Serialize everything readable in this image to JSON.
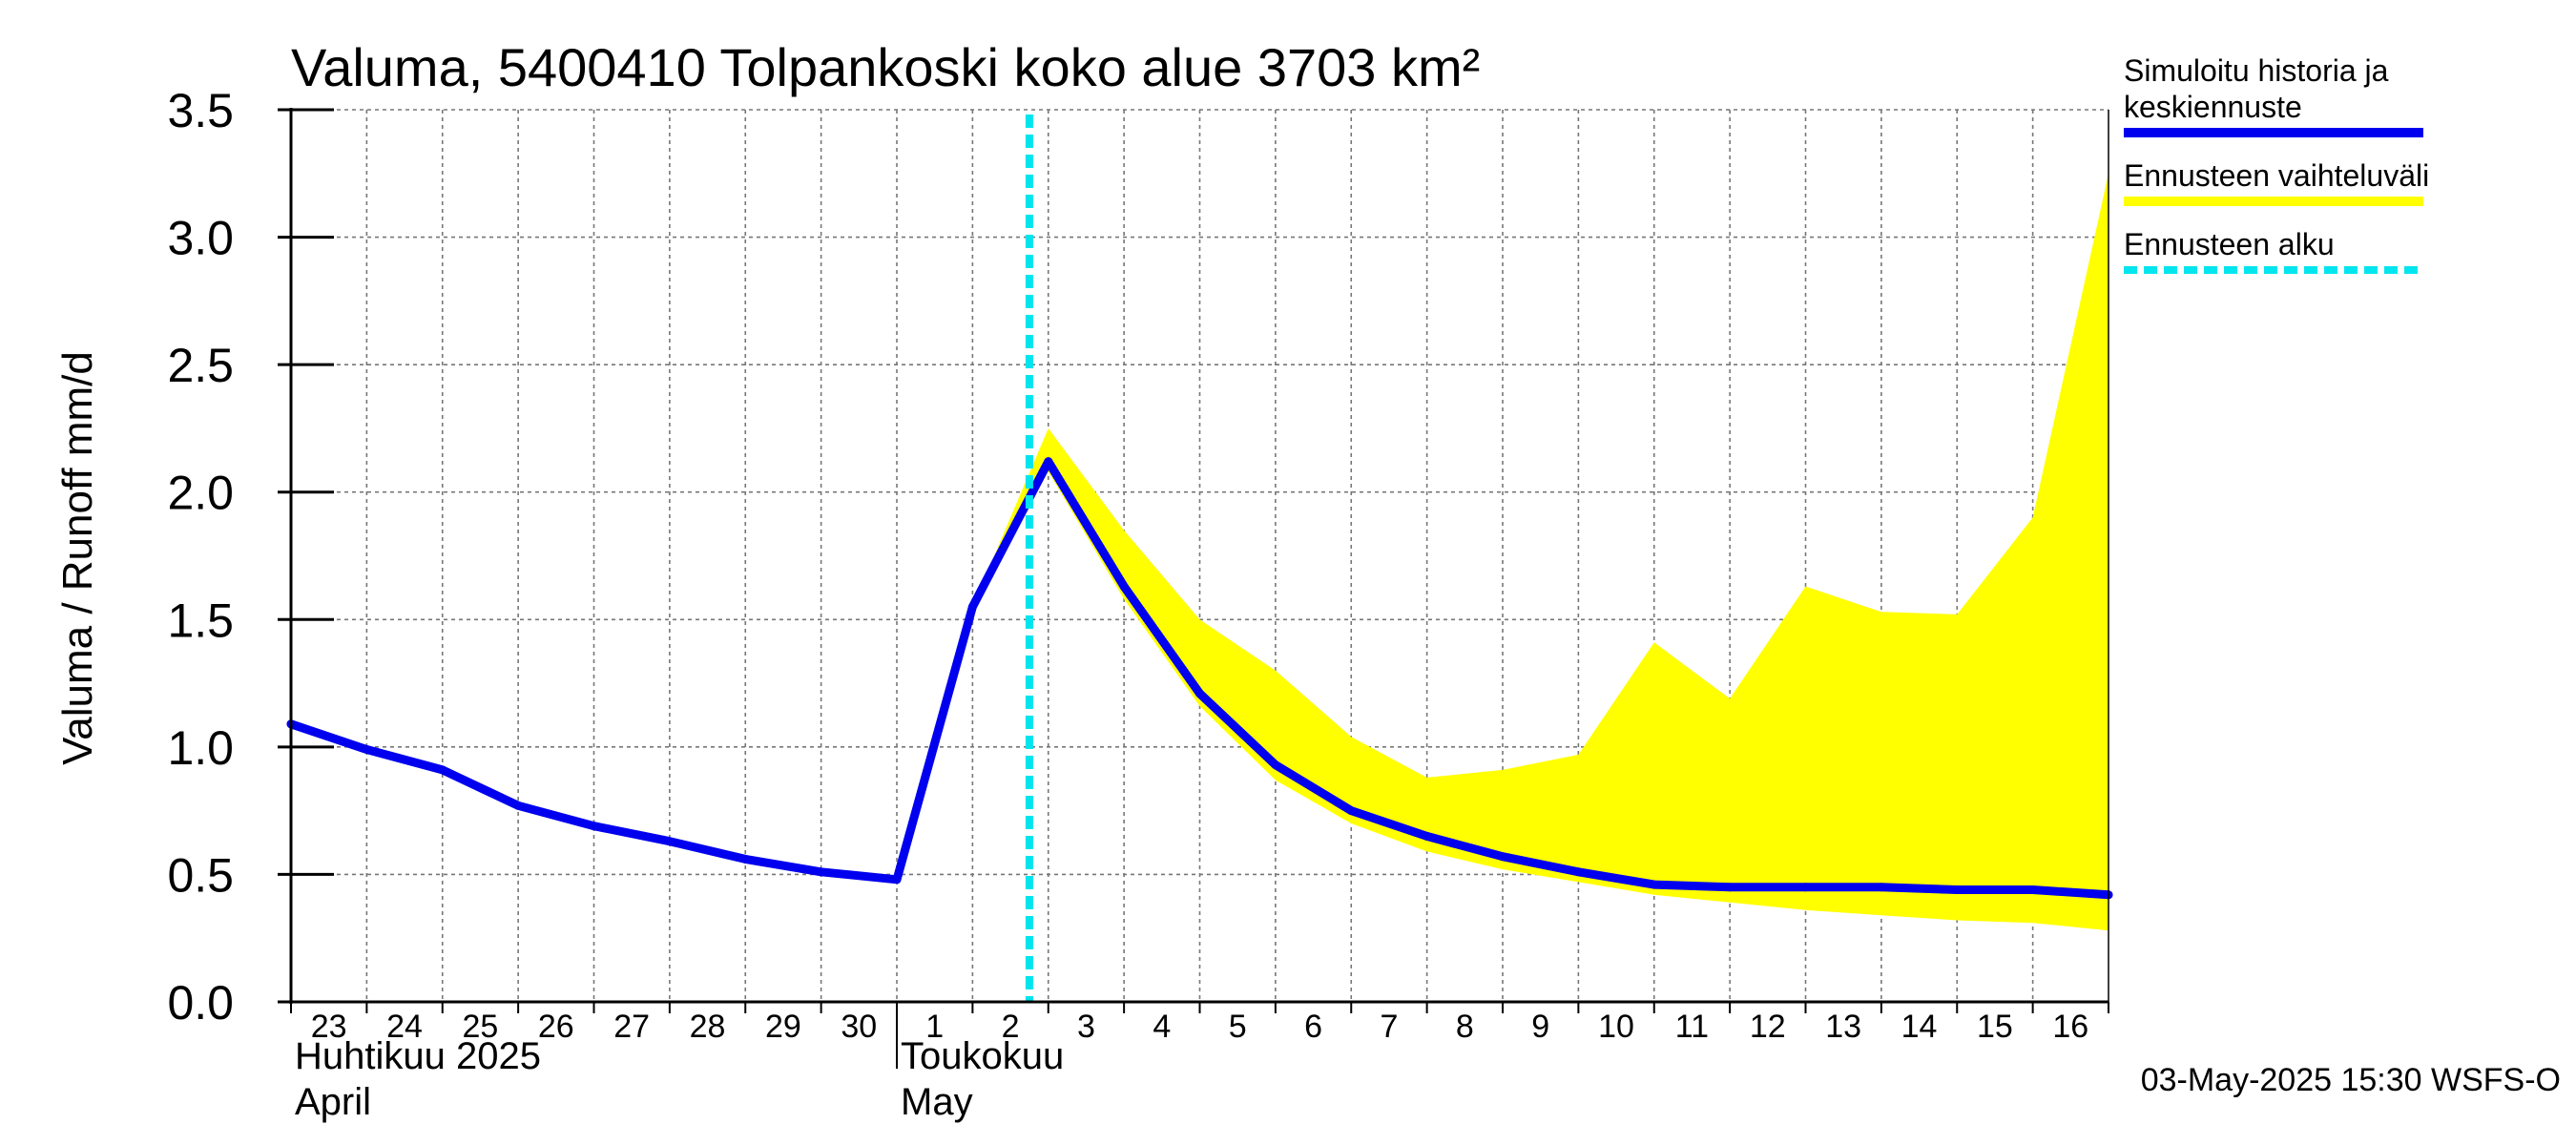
{
  "chart_data": {
    "type": "line",
    "title": "Valuma, 5400410 Tolpankoski koko alue 3703 km²",
    "ylabel": "Valuma / Runoff     mm/d",
    "ylim": [
      0,
      3.5
    ],
    "yticks": [
      "0.0",
      "0.5",
      "1.0",
      "1.5",
      "2.0",
      "2.5",
      "3.0",
      "3.5"
    ],
    "x_start": "2025-04-23",
    "x_end": "2025-05-17",
    "x_tick_labels": [
      "23",
      "24",
      "25",
      "26",
      "27",
      "28",
      "29",
      "30",
      "1",
      "2",
      "3",
      "4",
      "5",
      "6",
      "7",
      "8",
      "9",
      "10",
      "11",
      "12",
      "13",
      "14",
      "15",
      "16"
    ],
    "month_labels": [
      {
        "date": "2025-04-23",
        "line1": "Huhtikuu  2025",
        "line2": "April"
      },
      {
        "date": "2025-05-01",
        "line1": "Toukokuu",
        "line2": "May"
      }
    ],
    "forecast_start": "2025-05-02T18:00",
    "series": [
      {
        "name": "Simuloitu historia ja keskiennuste",
        "color": "#0000ee",
        "points": [
          [
            "2025-04-23",
            1.09
          ],
          [
            "2025-04-24",
            0.99
          ],
          [
            "2025-04-25",
            0.91
          ],
          [
            "2025-04-26",
            0.77
          ],
          [
            "2025-04-27",
            0.69
          ],
          [
            "2025-04-28",
            0.63
          ],
          [
            "2025-04-29",
            0.56
          ],
          [
            "2025-04-30",
            0.51
          ],
          [
            "2025-05-01",
            0.48
          ],
          [
            "2025-05-02",
            1.55
          ],
          [
            "2025-05-03",
            2.12
          ],
          [
            "2025-05-04",
            1.63
          ],
          [
            "2025-05-05",
            1.21
          ],
          [
            "2025-05-06",
            0.93
          ],
          [
            "2025-05-07",
            0.75
          ],
          [
            "2025-05-08",
            0.65
          ],
          [
            "2025-05-09",
            0.57
          ],
          [
            "2025-05-10",
            0.51
          ],
          [
            "2025-05-11",
            0.46
          ],
          [
            "2025-05-12",
            0.45
          ],
          [
            "2025-05-13",
            0.45
          ],
          [
            "2025-05-14",
            0.45
          ],
          [
            "2025-05-15",
            0.44
          ],
          [
            "2025-05-16",
            0.44
          ],
          [
            "2025-05-17",
            0.42
          ]
        ]
      }
    ],
    "band": {
      "name": "Ennusteen vaihteluväli",
      "color": "#ffff00",
      "points": [
        [
          "2025-05-02",
          1.55,
          1.55
        ],
        [
          "2025-05-03",
          2.08,
          2.25
        ],
        [
          "2025-05-04",
          1.58,
          1.85
        ],
        [
          "2025-05-05",
          1.16,
          1.5
        ],
        [
          "2025-05-06",
          0.87,
          1.3
        ],
        [
          "2025-05-07",
          0.7,
          1.04
        ],
        [
          "2025-05-08",
          0.59,
          0.88
        ],
        [
          "2025-05-09",
          0.52,
          0.91
        ],
        [
          "2025-05-10",
          0.47,
          0.97
        ],
        [
          "2025-05-11",
          0.42,
          1.41
        ],
        [
          "2025-05-12",
          0.39,
          1.19
        ],
        [
          "2025-05-13",
          0.36,
          1.63
        ],
        [
          "2025-05-14",
          0.34,
          1.53
        ],
        [
          "2025-05-15",
          0.32,
          1.52
        ],
        [
          "2025-05-16",
          0.31,
          1.9
        ],
        [
          "2025-05-17",
          0.28,
          3.25
        ]
      ]
    },
    "legend": [
      {
        "label_lines": [
          "Simuloitu historia ja",
          "keskiennuste"
        ],
        "color": "#0000ee",
        "style": "solid"
      },
      {
        "label_lines": [
          "Ennusteen vaihteluväli"
        ],
        "color": "#ffff00",
        "style": "solid"
      },
      {
        "label_lines": [
          "Ennusteen alku"
        ],
        "color": "#00e5ee",
        "style": "dashed"
      }
    ],
    "legend_position": "right",
    "grid": true,
    "timestamp": "03-May-2025 15:30 WSFS-O"
  }
}
